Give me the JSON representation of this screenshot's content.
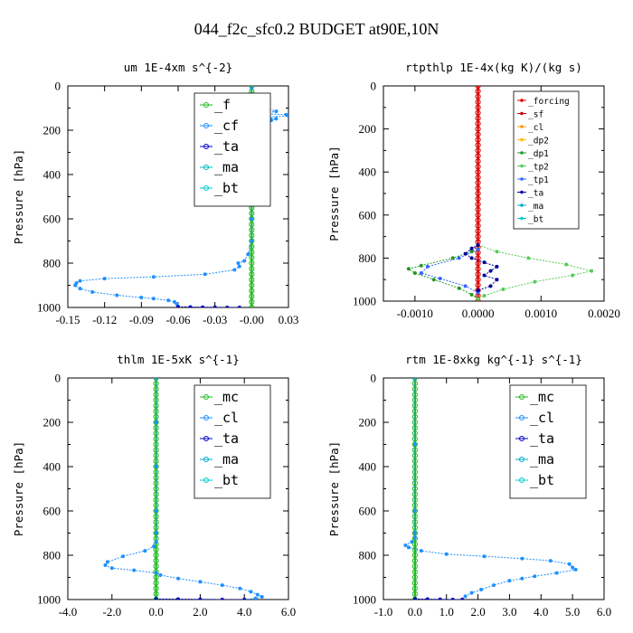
{
  "figure": {
    "title": "044_f2c_sfc0.2  BUDGET at90E,10N"
  },
  "chart_data": [
    {
      "type": "line",
      "title": "um  1E-4xm s^{-2}",
      "ylabel": "Pressure [hPa]",
      "xlim": [
        -0.15,
        0.03
      ],
      "ylim": [
        1000,
        0
      ],
      "xticks": [
        "-0.15",
        "-0.12",
        "-0.09",
        "-0.06",
        "-0.03",
        "-0.00",
        "0.03"
      ],
      "yticks": [
        "0",
        "200",
        "400",
        "600",
        "800",
        "1000"
      ],
      "legend": {
        "position": "top-right",
        "size": "large"
      },
      "series": [
        {
          "name": "_f",
          "color": "#22bb22",
          "points": [
            [
              0,
              0
            ],
            [
              0,
              100
            ],
            [
              0,
              200
            ],
            [
              0,
              300
            ],
            [
              0,
              400
            ],
            [
              0,
              500
            ],
            [
              0,
              600
            ],
            [
              0,
              700
            ],
            [
              0,
              800
            ],
            [
              0,
              900
            ],
            [
              0,
              1000
            ]
          ]
        },
        {
          "name": "_cf",
          "color": "#1e90ff",
          "points": [
            [
              0,
              10
            ],
            [
              0,
              50
            ],
            [
              0,
              85
            ],
            [
              0.012,
              100
            ],
            [
              0.02,
              115
            ],
            [
              0.008,
              125
            ],
            [
              0.028,
              130
            ],
            [
              0.03,
              135
            ],
            [
              0.012,
              140
            ],
            [
              0.02,
              148
            ],
            [
              0.016,
              155
            ],
            [
              0.006,
              160
            ],
            [
              0.0,
              170
            ],
            [
              -0.004,
              180
            ],
            [
              -0.008,
              190
            ],
            [
              -0.01,
              200
            ],
            [
              -0.005,
              215
            ],
            [
              -0.003,
              230
            ],
            [
              -0.001,
              260
            ],
            [
              0,
              320
            ],
            [
              0,
              400
            ],
            [
              0,
              500
            ],
            [
              0,
              600
            ],
            [
              0,
              700
            ],
            [
              -0.003,
              760
            ],
            [
              -0.006,
              790
            ],
            [
              -0.011,
              800
            ],
            [
              -0.01,
              815
            ],
            [
              -0.014,
              830
            ],
            [
              -0.038,
              850
            ],
            [
              -0.08,
              862
            ],
            [
              -0.12,
              870
            ],
            [
              -0.14,
              880
            ],
            [
              -0.143,
              890
            ],
            [
              -0.144,
              900
            ],
            [
              -0.14,
              915
            ],
            [
              -0.13,
              930
            ],
            [
              -0.11,
              945
            ],
            [
              -0.09,
              955
            ],
            [
              -0.08,
              960
            ],
            [
              -0.068,
              968
            ],
            [
              -0.063,
              975
            ],
            [
              -0.061,
              985
            ],
            [
              -0.06,
              1000
            ]
          ]
        },
        {
          "name": "_ta",
          "color": "#0000cc",
          "points": [
            [
              -0.06,
              997
            ],
            [
              -0.05,
              998
            ],
            [
              -0.04,
              999
            ],
            [
              -0.03,
              999
            ],
            [
              -0.02,
              1000
            ],
            [
              -0.01,
              1000
            ]
          ]
        },
        {
          "name": "_ma",
          "color": "#00bbbb",
          "points": []
        },
        {
          "name": "_bt",
          "color": "#00cccc",
          "points": []
        }
      ]
    },
    {
      "type": "line",
      "title": "rtpthlp  1E-4x(kg K)/(kg s)",
      "ylabel": "Pressure [hPa]",
      "xlim": [
        -0.0015,
        0.002
      ],
      "ylim": [
        1000,
        0
      ],
      "xticks": [
        "-0.0010",
        "0.0000",
        "0.0010",
        "0.0020"
      ],
      "xtick_values": [
        -0.001,
        0,
        0.001,
        0.002
      ],
      "yticks": [
        "0",
        "200",
        "400",
        "600",
        "800",
        "1000"
      ],
      "legend": {
        "position": "top-right",
        "size": "small"
      },
      "series": [
        {
          "name": "_forcing",
          "color": "#dd0000",
          "points": [
            [
              0,
              0
            ],
            [
              0,
              100
            ],
            [
              0,
              200
            ],
            [
              0,
              300
            ],
            [
              0,
              400
            ],
            [
              0,
              500
            ],
            [
              0,
              600
            ],
            [
              0,
              700
            ],
            [
              0,
              800
            ],
            [
              0,
              900
            ],
            [
              0,
              1000
            ]
          ]
        },
        {
          "name": "_sf",
          "color": "#cc0000",
          "points": []
        },
        {
          "name": "_cl",
          "color": "#ff9900",
          "points": []
        },
        {
          "name": "_dp2",
          "color": "#ffbb00",
          "points": []
        },
        {
          "name": "_dp1",
          "color": "#229922",
          "points": [
            [
              0,
              740
            ],
            [
              -0.0001,
              770
            ],
            [
              -0.0004,
              800
            ],
            [
              -0.0009,
              835
            ],
            [
              -0.0011,
              850
            ],
            [
              -0.001,
              870
            ],
            [
              -0.0007,
              900
            ],
            [
              -0.0003,
              940
            ],
            [
              -0.0001,
              970
            ],
            [
              0,
              990
            ]
          ]
        },
        {
          "name": "_tp2",
          "color": "#55cc55",
          "points": [
            [
              0,
              740
            ],
            [
              0.0003,
              770
            ],
            [
              0.0008,
              800
            ],
            [
              0.0014,
              830
            ],
            [
              0.0018,
              860
            ],
            [
              0.0015,
              880
            ],
            [
              0.0009,
              910
            ],
            [
              0.0004,
              945
            ],
            [
              0.0001,
              975
            ],
            [
              0,
              990
            ]
          ]
        },
        {
          "name": "_tp1",
          "color": "#3366ff",
          "points": [
            [
              0,
              760
            ],
            [
              -0.0003,
              800
            ],
            [
              -0.0008,
              840
            ],
            [
              -0.0009,
              870
            ],
            [
              -0.0006,
              895
            ],
            [
              -0.0002,
              930
            ],
            [
              0,
              960
            ]
          ]
        },
        {
          "name": "_ta",
          "color": "#000099",
          "points": [
            [
              0,
              740
            ],
            [
              -0.0001,
              755
            ],
            [
              -0.0002,
              780
            ],
            [
              -0.0001,
              800
            ],
            [
              0.0001,
              820
            ],
            [
              0.0003,
              840
            ],
            [
              0.0002,
              860
            ],
            [
              0.0001,
              880
            ],
            [
              0.0003,
              900
            ],
            [
              0.0002,
              930
            ],
            [
              0,
              950
            ]
          ]
        },
        {
          "name": "_ma",
          "color": "#00aacc",
          "points": []
        },
        {
          "name": "_bt",
          "color": "#00cccc",
          "points": []
        }
      ]
    },
    {
      "type": "line",
      "title": "thlm  1E-5xK s^{-1}",
      "ylabel": "Pressure [hPa]",
      "xlim": [
        -4.0,
        6.0
      ],
      "ylim": [
        1000,
        0
      ],
      "xticks": [
        "-4.0",
        "-2.0",
        "0.0",
        "2.0",
        "4.0",
        "6.0"
      ],
      "xtick_values": [
        -4,
        -2,
        0,
        2,
        4,
        6
      ],
      "yticks": [
        "0",
        "200",
        "400",
        "600",
        "800",
        "1000"
      ],
      "legend": {
        "position": "top-right",
        "size": "large"
      },
      "series": [
        {
          "name": "_mc",
          "color": "#22bb22",
          "points": [
            [
              0,
              0
            ],
            [
              0,
              100
            ],
            [
              0,
              200
            ],
            [
              0,
              300
            ],
            [
              0,
              400
            ],
            [
              0,
              500
            ],
            [
              0,
              600
            ],
            [
              0,
              700
            ],
            [
              0,
              800
            ],
            [
              0,
              900
            ],
            [
              0,
              1000
            ]
          ]
        },
        {
          "name": "_cl",
          "color": "#1e90ff",
          "points": [
            [
              0,
              0
            ],
            [
              0,
              200
            ],
            [
              0,
              400
            ],
            [
              0,
              600
            ],
            [
              0,
              700
            ],
            [
              0,
              740
            ],
            [
              -0.1,
              760
            ],
            [
              -0.5,
              780
            ],
            [
              -1.5,
              805
            ],
            [
              -2.2,
              830
            ],
            [
              -2.3,
              845
            ],
            [
              -2.0,
              858
            ],
            [
              -1.0,
              868
            ],
            [
              0,
              880
            ],
            [
              0.2,
              890
            ],
            [
              1.0,
              905
            ],
            [
              2.0,
              920
            ],
            [
              3.0,
              935
            ],
            [
              3.8,
              950
            ],
            [
              4.3,
              965
            ],
            [
              4.6,
              978
            ],
            [
              4.8,
              988
            ],
            [
              4.5,
              995
            ],
            [
              4.0,
              1000
            ]
          ]
        },
        {
          "name": "_ta",
          "color": "#0000cc",
          "points": [
            [
              0,
              997
            ],
            [
              1.0,
              998
            ],
            [
              2.0,
              999
            ],
            [
              3.0,
              1000
            ],
            [
              4.0,
              1000
            ]
          ]
        },
        {
          "name": "_ma",
          "color": "#00aacc",
          "points": []
        },
        {
          "name": "_bt",
          "color": "#00cccc",
          "points": []
        }
      ]
    },
    {
      "type": "line",
      "title": "rtm  1E-8xkg kg^{-1} s^{-1}",
      "ylabel": "Pressure [hPa]",
      "xlim": [
        -1.0,
        6.0
      ],
      "ylim": [
        1000,
        0
      ],
      "xticks": [
        "-1.0",
        "0.0",
        "1.0",
        "2.0",
        "3.0",
        "4.0",
        "5.0",
        "6.0"
      ],
      "xtick_values": [
        -1,
        0,
        1,
        2,
        3,
        4,
        5,
        6
      ],
      "yticks": [
        "0",
        "200",
        "400",
        "600",
        "800",
        "1000"
      ],
      "legend": {
        "position": "top-right",
        "size": "large"
      },
      "series": [
        {
          "name": "_mc",
          "color": "#22bb22",
          "points": [
            [
              0,
              0
            ],
            [
              0,
              100
            ],
            [
              0,
              200
            ],
            [
              0,
              300
            ],
            [
              0,
              400
            ],
            [
              0,
              500
            ],
            [
              0,
              600
            ],
            [
              0,
              700
            ],
            [
              0,
              800
            ],
            [
              0,
              900
            ],
            [
              0,
              1000
            ]
          ]
        },
        {
          "name": "_cl",
          "color": "#1e90ff",
          "points": [
            [
              0,
              0
            ],
            [
              0,
              300
            ],
            [
              0,
              600
            ],
            [
              0,
              700
            ],
            [
              0,
              720
            ],
            [
              -0.1,
              740
            ],
            [
              -0.3,
              755
            ],
            [
              -0.2,
              765
            ],
            [
              0.2,
              780
            ],
            [
              1.0,
              795
            ],
            [
              2.2,
              805
            ],
            [
              3.4,
              815
            ],
            [
              4.3,
              825
            ],
            [
              4.9,
              840
            ],
            [
              5.0,
              855
            ],
            [
              5.1,
              865
            ],
            [
              4.5,
              880
            ],
            [
              3.8,
              895
            ],
            [
              3.4,
              905
            ],
            [
              3.0,
              915
            ],
            [
              2.5,
              935
            ],
            [
              2.1,
              955
            ],
            [
              1.8,
              970
            ],
            [
              1.6,
              985
            ],
            [
              1.5,
              1000
            ]
          ]
        },
        {
          "name": "_ta",
          "color": "#0000cc",
          "points": [
            [
              0,
              997
            ],
            [
              0.4,
              998
            ],
            [
              0.8,
              999
            ],
            [
              1.2,
              1000
            ],
            [
              1.5,
              1000
            ]
          ]
        },
        {
          "name": "_ma",
          "color": "#00aacc",
          "points": []
        },
        {
          "name": "_bt",
          "color": "#00cccc",
          "points": []
        }
      ]
    }
  ]
}
